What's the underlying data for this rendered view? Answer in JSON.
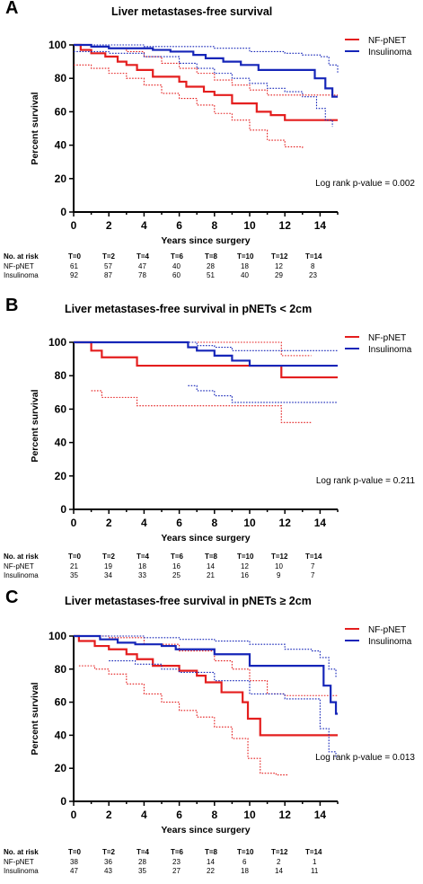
{
  "panels": [
    {
      "letter": "A",
      "title": "Liver metastases-free survival",
      "pvalue": "Log rank p-value = 0.002",
      "risk_header": [
        "No. at risk",
        "T=0",
        "T=2",
        "T=4",
        "T=6",
        "T=8",
        "T=10",
        "T=12",
        "T=14"
      ],
      "risk_rows": [
        {
          "label": "NF-pNET",
          "values": [
            "61",
            "57",
            "47",
            "40",
            "28",
            "18",
            "12",
            "8"
          ]
        },
        {
          "label": "Insulinoma",
          "values": [
            "92",
            "87",
            "78",
            "60",
            "51",
            "40",
            "29",
            "23"
          ]
        }
      ]
    },
    {
      "letter": "B",
      "title": "Liver metastases-free survival in pNETs < 2cm",
      "pvalue": "Log rank p-value = 0.211",
      "risk_header": [
        "No. at risk",
        "T=0",
        "T=2",
        "T=4",
        "T=6",
        "T=8",
        "T=10",
        "T=12",
        "T=14"
      ],
      "risk_rows": [
        {
          "label": "NF-pNET",
          "values": [
            "21",
            "19",
            "18",
            "16",
            "14",
            "12",
            "10",
            "7"
          ]
        },
        {
          "label": "Insulinoma",
          "values": [
            "35",
            "34",
            "33",
            "25",
            "21",
            "16",
            "9",
            "7"
          ]
        }
      ]
    },
    {
      "letter": "C",
      "title": "Liver metastases-free survival in pNETs ≥ 2cm",
      "pvalue": "Log rank p-value = 0.013",
      "risk_header": [
        "No. at risk",
        "T=0",
        "T=2",
        "T=4",
        "T=6",
        "T=8",
        "T=10",
        "T=12",
        "T=14"
      ],
      "risk_rows": [
        {
          "label": "NF-pNET",
          "values": [
            "38",
            "36",
            "28",
            "23",
            "14",
            "6",
            "2",
            "1"
          ]
        },
        {
          "label": "Insulinoma",
          "values": [
            "47",
            "43",
            "35",
            "27",
            "22",
            "18",
            "14",
            "11"
          ]
        }
      ]
    }
  ],
  "colors": {
    "nf_pnet": "#e41e1e",
    "insulinoma": "#1525b8"
  },
  "chart_data": [
    {
      "type": "line",
      "title": "Liver metastases-free survival",
      "xlabel": "Years since surgery",
      "ylabel": "Percent survival",
      "xlim": [
        0,
        15
      ],
      "ylim": [
        0,
        100
      ],
      "xticks": [
        0,
        2,
        4,
        6,
        8,
        10,
        12,
        14
      ],
      "yticks": [
        0,
        20,
        40,
        60,
        80,
        100
      ],
      "legend": "top-right",
      "series": [
        {
          "name": "NF-pNET",
          "style": "step",
          "x": [
            0,
            0.4,
            1,
            1.8,
            2.5,
            3,
            3.6,
            4.5,
            6,
            6.4,
            7.4,
            8,
            9,
            10.4,
            11.2,
            12,
            15
          ],
          "y": [
            100,
            97,
            95,
            93,
            90,
            88,
            85,
            81,
            78,
            75,
            72,
            70,
            65,
            60,
            58,
            55,
            55
          ]
        },
        {
          "name": "",
          "style": "dotted",
          "x": [
            0,
            0.4,
            1,
            2,
            3,
            4,
            5,
            6,
            7,
            8,
            9,
            10,
            11,
            12,
            13
          ],
          "y": [
            88,
            88,
            86,
            83,
            80,
            76,
            71,
            68,
            64,
            59,
            55,
            49,
            43,
            39,
            38
          ]
        },
        {
          "name": "",
          "style": "dotted",
          "x": [
            0,
            1,
            2,
            3,
            4,
            5,
            6,
            7,
            8,
            9,
            10,
            11,
            12,
            13,
            14,
            15
          ],
          "y": [
            100,
            99,
            98,
            96,
            93,
            89,
            86,
            83,
            79,
            76,
            73,
            70,
            70,
            70,
            70,
            70
          ]
        },
        {
          "name": "Insulinoma",
          "style": "step",
          "x": [
            0,
            1,
            2,
            3,
            4.5,
            5.5,
            6.8,
            7.5,
            8.5,
            9.5,
            10.5,
            13.7,
            14.3,
            14.7,
            15
          ],
          "y": [
            100,
            99,
            98,
            98,
            97,
            96,
            94,
            92,
            90,
            88,
            85,
            80,
            74,
            69,
            69
          ]
        },
        {
          "name": "",
          "style": "dotted",
          "x": [
            0,
            2,
            4,
            6,
            7,
            8,
            9,
            10,
            11,
            12,
            13,
            13.8,
            14.3,
            14.7
          ],
          "y": [
            96,
            95,
            93,
            89,
            86,
            83,
            80,
            77,
            74,
            72,
            69,
            62,
            55,
            51
          ]
        },
        {
          "name": "",
          "style": "dotted",
          "x": [
            0,
            2,
            4,
            6,
            8,
            10,
            12,
            13,
            14,
            14.5,
            15
          ],
          "y": [
            100,
            100,
            99,
            99,
            98,
            96,
            95,
            94,
            93,
            88,
            83
          ]
        }
      ],
      "annotation": "Log rank p-value = 0.002"
    },
    {
      "type": "line",
      "title": "Liver metastases-free survival in pNETs < 2cm",
      "xlabel": "Years since surgery",
      "ylabel": "Percent survival",
      "xlim": [
        0,
        15
      ],
      "ylim": [
        0,
        100
      ],
      "xticks": [
        0,
        2,
        4,
        6,
        8,
        10,
        12,
        14
      ],
      "yticks": [
        0,
        20,
        40,
        60,
        80,
        100
      ],
      "legend": "top-right",
      "series": [
        {
          "name": "NF-pNET",
          "style": "step",
          "x": [
            0,
            1,
            1.6,
            3.6,
            11.8,
            15
          ],
          "y": [
            100,
            95,
            91,
            86,
            79,
            79
          ]
        },
        {
          "name": "",
          "style": "dotted",
          "x": [
            1,
            1.6,
            3.6,
            11.8,
            13.5
          ],
          "y": [
            71,
            67,
            62,
            52,
            52
          ]
        },
        {
          "name": "",
          "style": "dotted",
          "x": [
            1,
            3.6,
            11.8,
            13.5
          ],
          "y": [
            100,
            100,
            92,
            92
          ]
        },
        {
          "name": "Insulinoma",
          "style": "step",
          "x": [
            0,
            6.5,
            7,
            8,
            9,
            10,
            15
          ],
          "y": [
            100,
            97,
            95,
            92,
            89,
            86,
            86
          ]
        },
        {
          "name": "",
          "style": "dotted",
          "x": [
            6.5,
            7,
            8,
            9,
            15
          ],
          "y": [
            74,
            71,
            68,
            64,
            64
          ]
        },
        {
          "name": "",
          "style": "dotted",
          "x": [
            1,
            6.5,
            7,
            8,
            9,
            15
          ],
          "y": [
            100,
            100,
            98,
            97,
            95,
            95
          ]
        }
      ],
      "annotation": "Log rank p-value = 0.211"
    },
    {
      "type": "line",
      "title": "Liver metastases-free survival in pNETs ≥ 2cm",
      "xlabel": "Years since surgery",
      "ylabel": "Percent survival",
      "xlim": [
        0,
        15
      ],
      "ylim": [
        0,
        100
      ],
      "xticks": [
        0,
        2,
        4,
        6,
        8,
        10,
        12,
        14
      ],
      "yticks": [
        0,
        20,
        40,
        60,
        80,
        100
      ],
      "legend": "top-right",
      "series": [
        {
          "name": "NF-pNET",
          "style": "step",
          "x": [
            0,
            0.3,
            1.2,
            2,
            3,
            3.6,
            4.5,
            6,
            7,
            7.5,
            8.4,
            9.6,
            9.9,
            10.6,
            15
          ],
          "y": [
            100,
            97,
            94,
            92,
            89,
            86,
            82,
            79,
            76,
            72,
            66,
            60,
            50,
            40,
            40
          ]
        },
        {
          "name": "",
          "style": "dotted",
          "x": [
            0.3,
            1.2,
            2,
            3,
            4,
            5,
            6,
            7,
            8,
            9,
            9.9,
            10.6,
            11.5,
            12.2
          ],
          "y": [
            82,
            80,
            77,
            71,
            65,
            60,
            55,
            51,
            45,
            38,
            26,
            17,
            16,
            16
          ]
        },
        {
          "name": "",
          "style": "dotted",
          "x": [
            0.3,
            2,
            4,
            6,
            8,
            9,
            10,
            11,
            12,
            13,
            14,
            15
          ],
          "y": [
            100,
            99,
            95,
            91,
            85,
            80,
            73,
            65,
            64,
            64,
            64,
            64
          ]
        },
        {
          "name": "Insulinoma",
          "style": "step",
          "x": [
            0,
            1.5,
            2.5,
            3.5,
            5,
            5.8,
            8,
            10,
            14.2,
            14.6,
            14.9,
            15
          ],
          "y": [
            100,
            98,
            96,
            95,
            94,
            92,
            89,
            82,
            70,
            60,
            53,
            53
          ]
        },
        {
          "name": "",
          "style": "dotted",
          "x": [
            2,
            3.5,
            5,
            6,
            8,
            10,
            12,
            13.5,
            14,
            14.5,
            14.9
          ],
          "y": [
            85,
            83,
            80,
            78,
            73,
            65,
            62,
            62,
            44,
            30,
            26
          ]
        },
        {
          "name": "",
          "style": "dotted",
          "x": [
            0,
            2,
            4,
            6,
            8,
            10,
            12,
            13.5,
            14,
            14.5,
            14.9
          ],
          "y": [
            100,
            100,
            99,
            98,
            97,
            95,
            92,
            91,
            87,
            80,
            75
          ]
        }
      ],
      "annotation": "Log rank p-value = 0.013"
    }
  ]
}
